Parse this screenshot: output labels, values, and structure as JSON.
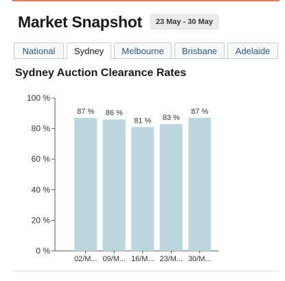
{
  "header": {
    "title": "Market Snapshot",
    "date_range": "23 May - 30 May"
  },
  "tabs": [
    {
      "label": "National",
      "active": false
    },
    {
      "label": "Sydney",
      "active": true
    },
    {
      "label": "Melbourne",
      "active": false
    },
    {
      "label": "Brisbane",
      "active": false
    },
    {
      "label": "Adelaide",
      "active": false
    }
  ],
  "colors": {
    "bar": "#bcd6de",
    "tab_text": "#2a5a8c",
    "accent_rule": "#e87a5c"
  },
  "chart_data": {
    "type": "bar",
    "title": "Sydney Auction Clearance Rates",
    "xlabel": "",
    "ylabel": "",
    "categories": [
      "02/M...",
      "09/M...",
      "16/M...",
      "23/M...",
      "30/M..."
    ],
    "values": [
      87,
      86,
      81,
      83,
      87
    ],
    "value_labels": [
      "87 %",
      "86 %",
      "81 %",
      "83 %",
      "87 %"
    ],
    "ylim": [
      0,
      100
    ],
    "yticks": [
      0,
      20,
      40,
      60,
      80,
      100
    ],
    "ytick_labels": [
      "0 %",
      "20 %",
      "40 %",
      "60 %",
      "80 %",
      "100 %"
    ],
    "grid": false,
    "legend": "none"
  }
}
